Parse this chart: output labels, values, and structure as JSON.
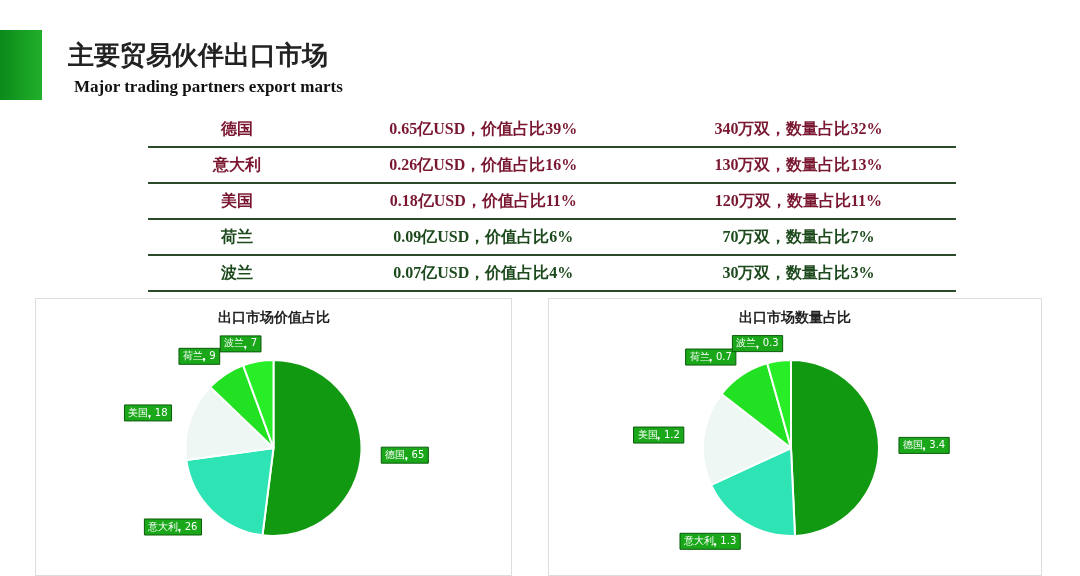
{
  "chart_data": [
    {
      "type": "other",
      "title": "主要贸易伙伴出口市场",
      "subtitle": "Major trading partners export marts",
      "annotations": [
        "德国",
        "0.65亿USD，价值占比39%",
        "340万双，数量占比32%",
        "意大利",
        "0.26亿USD，价值占比16%",
        "130万双，数量占比13%",
        "美国",
        "0.18亿USD，价值占比11%",
        "120万双，数量占比11%",
        "荷兰",
        "0.09亿USD，价值占比6%",
        "70万双，数量占比7%",
        "波兰",
        "0.07亿USD，价值占比4%",
        "30万双，数量占比3%"
      ]
    },
    {
      "type": "pie",
      "title": "出口市场价值占比",
      "categories": [
        "德国",
        "意大利",
        "美国",
        "荷兰",
        "波兰"
      ],
      "values": [
        65,
        26,
        18,
        9,
        7
      ],
      "colors": [
        "#119a11",
        "#2ee3b4",
        "#eef7f3",
        "#22e022",
        "#28ee28"
      ],
      "data_labels": true
    },
    {
      "type": "pie",
      "title": "出口市场数量占比",
      "categories": [
        "德国",
        "意大利",
        "美国",
        "荷兰",
        "波兰"
      ],
      "values": [
        3.4,
        1.3,
        1.2,
        0.7,
        0.3
      ],
      "colors": [
        "#119a11",
        "#2ee3b4",
        "#eef7f3",
        "#22e022",
        "#28ee28"
      ],
      "data_labels": true
    }
  ]
}
